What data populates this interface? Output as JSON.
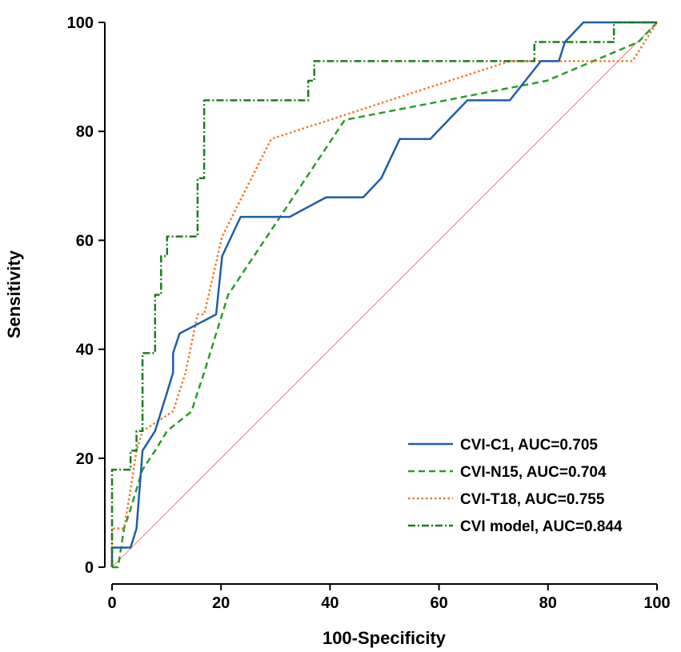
{
  "chart_data": {
    "type": "line",
    "title": "",
    "xlabel": "100-Specificity",
    "ylabel": "Sensitivity",
    "xlim": [
      0,
      100
    ],
    "ylim": [
      0,
      100
    ],
    "xticks": [
      0,
      20,
      40,
      60,
      80,
      100
    ],
    "yticks": [
      0,
      20,
      40,
      60,
      80,
      100
    ],
    "grid": false,
    "legend_position": "bottom-right",
    "reference_line": {
      "name": "chance diagonal",
      "points": [
        [
          0,
          0
        ],
        [
          100,
          100
        ]
      ],
      "color": "#e06666"
    },
    "series": [
      {
        "name": "CVI-C1",
        "label": "CVI-C1, AUC=0.705",
        "color": "#1f5fa6",
        "dash": "solid",
        "points": [
          [
            0,
            0
          ],
          [
            0,
            3.6
          ],
          [
            3.4,
            3.6
          ],
          [
            4.5,
            7.1
          ],
          [
            5.6,
            21.4
          ],
          [
            7.9,
            25
          ],
          [
            10.1,
            32.1
          ],
          [
            11.2,
            35.7
          ],
          [
            11.2,
            39.3
          ],
          [
            12.4,
            42.9
          ],
          [
            19.1,
            46.4
          ],
          [
            20.2,
            57.1
          ],
          [
            23.6,
            64.3
          ],
          [
            32.6,
            64.3
          ],
          [
            39.3,
            67.9
          ],
          [
            46.1,
            67.9
          ],
          [
            49.4,
            71.4
          ],
          [
            52.8,
            78.6
          ],
          [
            58.4,
            78.6
          ],
          [
            65.2,
            85.7
          ],
          [
            73,
            85.7
          ],
          [
            78.7,
            92.9
          ],
          [
            82,
            92.9
          ],
          [
            83.1,
            96.4
          ],
          [
            86.5,
            100
          ],
          [
            100,
            100
          ]
        ]
      },
      {
        "name": "CVI-N15",
        "label": "CVI-N15, AUC=0.704",
        "color": "#2a9d2a",
        "dash": "dashed",
        "points": [
          [
            0,
            0
          ],
          [
            1.1,
            0
          ],
          [
            2.2,
            7.1
          ],
          [
            3.4,
            10.7
          ],
          [
            4.5,
            14.3
          ],
          [
            5.6,
            17.9
          ],
          [
            7.9,
            21.4
          ],
          [
            10.1,
            25
          ],
          [
            14.6,
            28.6
          ],
          [
            15.7,
            32.1
          ],
          [
            16.9,
            35.7
          ],
          [
            18,
            39.3
          ],
          [
            19.1,
            42.9
          ],
          [
            20.2,
            46.4
          ],
          [
            21.3,
            50
          ],
          [
            42.7,
            82.1
          ],
          [
            79.8,
            89.3
          ],
          [
            96.6,
            96.4
          ],
          [
            100,
            100
          ]
        ]
      },
      {
        "name": "CVI-T18",
        "label": "CVI-T18, AUC=0.755",
        "color": "#f07a28",
        "dash": "dotted",
        "points": [
          [
            0,
            0
          ],
          [
            0,
            7.1
          ],
          [
            2.2,
            7.1
          ],
          [
            3.4,
            14.3
          ],
          [
            4.5,
            21.4
          ],
          [
            5.6,
            25
          ],
          [
            11.2,
            28.6
          ],
          [
            13.5,
            35.7
          ],
          [
            15.7,
            46.4
          ],
          [
            16.9,
            46.4
          ],
          [
            20.2,
            60.7
          ],
          [
            29.2,
            78.6
          ],
          [
            73,
            92.9
          ],
          [
            95.5,
            92.9
          ],
          [
            100,
            100
          ]
        ]
      },
      {
        "name": "CVI model",
        "label": "CVI model, AUC=0.844",
        "color": "#1f7a1f",
        "dash": "dashdot",
        "points": [
          [
            0,
            0
          ],
          [
            0,
            17.9
          ],
          [
            3.4,
            17.9
          ],
          [
            3.4,
            21.4
          ],
          [
            4.5,
            21.4
          ],
          [
            4.5,
            25
          ],
          [
            5.6,
            25
          ],
          [
            5.6,
            39.3
          ],
          [
            7.9,
            39.3
          ],
          [
            7.9,
            50
          ],
          [
            9,
            50
          ],
          [
            9,
            57.1
          ],
          [
            10.1,
            57.1
          ],
          [
            10.1,
            60.7
          ],
          [
            15.7,
            60.7
          ],
          [
            15.7,
            71.4
          ],
          [
            16.9,
            71.4
          ],
          [
            16.9,
            85.7
          ],
          [
            36,
            85.7
          ],
          [
            36,
            89.3
          ],
          [
            37.1,
            89.3
          ],
          [
            37.1,
            92.9
          ],
          [
            77.5,
            92.9
          ],
          [
            77.5,
            96.4
          ],
          [
            92.1,
            96.4
          ],
          [
            92.1,
            100
          ],
          [
            100,
            100
          ]
        ]
      }
    ]
  }
}
